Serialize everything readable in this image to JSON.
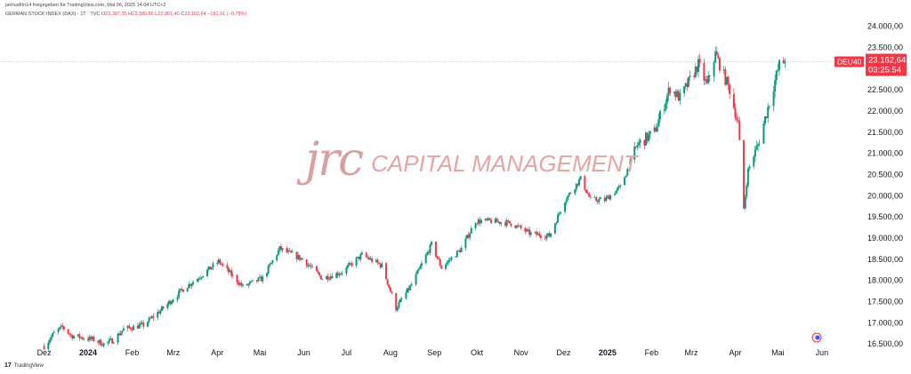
{
  "header": {
    "published_by": "petruafrin14 freigegeben für TradingView.com, Mai 06, 2025 14:04 UTC+2",
    "instrument": "GERMAN STOCK INDEX (DAX) · 1T · TVC",
    "ohlc": {
      "o_label": "O",
      "o_value": "23.387,35",
      "h_label": "H",
      "h_value": "23.389,86",
      "l_label": "L",
      "l_value": "22.861,40",
      "c_label": "C",
      "c_value": "23.162,64",
      "change": "−181,91 (−0,78%)"
    }
  },
  "watermark": {
    "logo": "jrc",
    "text": "CAPITAL MANAGEMENT"
  },
  "footer": {
    "brand": "TradingView",
    "brand_mark": "17"
  },
  "colors": {
    "up": "#089981",
    "down": "#f23645",
    "axis_text": "#131722",
    "price_tag": "#f23645"
  },
  "chart_data": {
    "type": "candlestick",
    "title": "GERMAN STOCK INDEX (DAX) · 1T · TVC",
    "x_ticks": [
      "Dez",
      "2024",
      "Feb",
      "Mrz",
      "Apr",
      "Mai",
      "Jun",
      "Jul",
      "Aug",
      "Sep",
      "Okt",
      "Nov",
      "Dez",
      "2025",
      "Feb",
      "Mrz",
      "Apr",
      "Mai",
      "Jun"
    ],
    "bold_ticks": [
      "2024",
      "2025"
    ],
    "y_ticks": [
      "24.000,00",
      "23.500,00",
      "23.000,00",
      "22.500,00",
      "22.000,00",
      "21.500,00",
      "21.000,00",
      "20.500,00",
      "20.000,00",
      "19.500,00",
      "19.000,00",
      "18.500,00",
      "18.000,00",
      "17.500,00",
      "17.000,00",
      "16.500,00"
    ],
    "ylim": [
      16400,
      24200
    ],
    "grid": false,
    "last_price": 23162.64,
    "price_tag": {
      "symbol": "DEU40",
      "price": "23.162,64",
      "countdown": "03:25:54"
    },
    "anchors": [
      [
        "2023-12-01",
        16450
      ],
      [
        "2023-12-08",
        16750
      ],
      [
        "2023-12-14",
        16900
      ],
      [
        "2023-12-20",
        16700
      ],
      [
        "2024-01-05",
        16600
      ],
      [
        "2024-01-12",
        16500
      ],
      [
        "2024-01-19",
        16600
      ],
      [
        "2024-01-26",
        16850
      ],
      [
        "2024-02-09",
        16950
      ],
      [
        "2024-02-23",
        17350
      ],
      [
        "2024-03-08",
        17800
      ],
      [
        "2024-03-22",
        18150
      ],
      [
        "2024-04-02",
        18450
      ],
      [
        "2024-04-19",
        17850
      ],
      [
        "2024-05-03",
        18050
      ],
      [
        "2024-05-15",
        18750
      ],
      [
        "2024-05-31",
        18500
      ],
      [
        "2024-06-14",
        18050
      ],
      [
        "2024-06-28",
        18200
      ],
      [
        "2024-07-12",
        18600
      ],
      [
        "2024-07-26",
        18350
      ],
      [
        "2024-08-05",
        17350
      ],
      [
        "2024-08-16",
        17900
      ],
      [
        "2024-08-30",
        18850
      ],
      [
        "2024-09-06",
        18300
      ],
      [
        "2024-09-20",
        18750
      ],
      [
        "2024-09-30",
        19400
      ],
      [
        "2024-10-11",
        19400
      ],
      [
        "2024-10-25",
        19350
      ],
      [
        "2024-11-08",
        19100
      ],
      [
        "2024-11-21",
        19050
      ],
      [
        "2024-12-02",
        19900
      ],
      [
        "2024-12-13",
        20400
      ],
      [
        "2024-12-20",
        19900
      ],
      [
        "2024-12-30",
        19900
      ],
      [
        "2025-01-10",
        20200
      ],
      [
        "2025-01-22",
        21200
      ],
      [
        "2025-02-03",
        21500
      ],
      [
        "2025-02-14",
        22550
      ],
      [
        "2025-02-21",
        22300
      ],
      [
        "2025-03-06",
        23100
      ],
      [
        "2025-03-12",
        22600
      ],
      [
        "2025-03-18",
        23350
      ],
      [
        "2025-03-28",
        22500
      ],
      [
        "2025-04-03",
        21700
      ],
      [
        "2025-04-07",
        19700
      ],
      [
        "2025-04-10",
        20600
      ],
      [
        "2025-04-17",
        21200
      ],
      [
        "2025-04-25",
        22200
      ],
      [
        "2025-05-02",
        23100
      ],
      [
        "2025-05-06",
        23162
      ]
    ]
  }
}
